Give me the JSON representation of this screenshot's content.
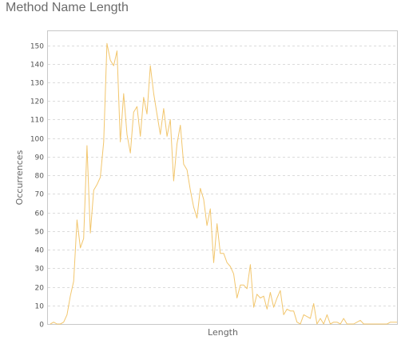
{
  "chart_data": {
    "type": "line",
    "title": "Method Name Length",
    "xlabel": "Length",
    "ylabel": "Occurrences",
    "ylim": [
      0,
      158
    ],
    "yticks": [
      0,
      10,
      20,
      30,
      40,
      50,
      60,
      70,
      80,
      90,
      100,
      110,
      120,
      130,
      140,
      150
    ],
    "grid": true,
    "line_color": "#f2c66d",
    "series": [
      {
        "values": [
          0,
          1,
          0,
          0,
          1,
          5,
          15,
          23,
          56,
          41,
          46,
          96,
          49,
          72,
          75,
          79,
          98,
          151,
          142,
          139,
          147,
          98,
          124,
          102,
          92,
          114,
          117,
          101,
          122,
          113,
          139,
          124,
          113,
          102,
          116,
          101,
          110,
          77,
          97,
          107,
          86,
          83,
          72,
          63,
          57,
          73,
          67,
          53,
          62,
          33,
          54,
          38,
          38,
          33,
          31,
          27,
          14,
          21,
          21,
          19,
          32,
          9,
          16,
          14,
          15,
          8,
          17,
          9,
          14,
          18,
          5,
          8,
          7,
          7,
          1,
          0,
          5,
          4,
          3,
          11,
          0,
          3,
          0,
          5,
          0,
          1,
          1,
          0,
          3,
          0,
          0,
          0,
          1,
          2,
          0,
          0,
          0,
          0,
          0,
          0,
          0,
          0,
          1,
          1,
          1
        ]
      }
    ]
  }
}
